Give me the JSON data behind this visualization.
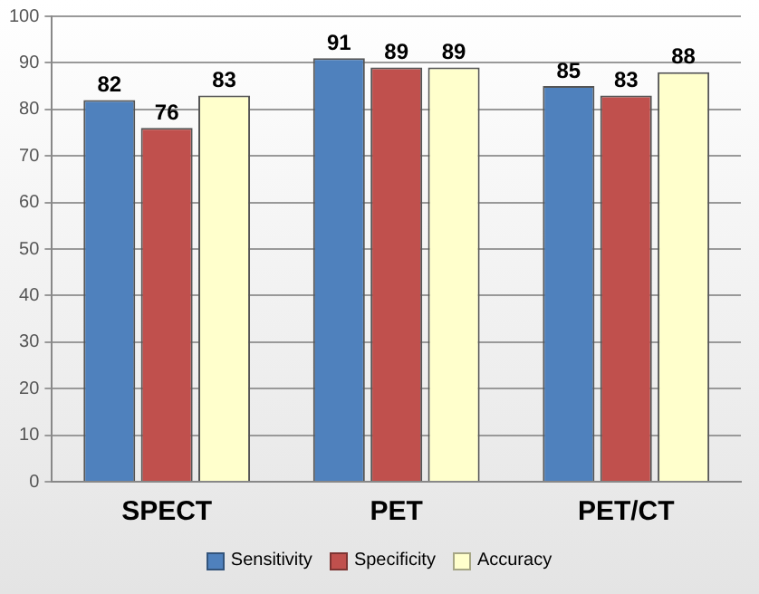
{
  "chart_data": {
    "type": "bar",
    "categories": [
      "SPECT",
      "PET",
      "PET/CT"
    ],
    "series": [
      {
        "name": "Sensitivity",
        "color": "#4f81bd",
        "values": [
          82,
          91,
          85
        ]
      },
      {
        "name": "Specificity",
        "color": "#c0504d",
        "values": [
          76,
          89,
          83
        ]
      },
      {
        "name": "Accuracy",
        "color": "#ffffcc",
        "values": [
          83,
          89,
          88
        ]
      }
    ],
    "ylim": [
      0,
      100
    ],
    "yticks": [
      0,
      10,
      20,
      30,
      40,
      50,
      60,
      70,
      80,
      90,
      100
    ],
    "grid": "y",
    "legend": "bottom",
    "data_labels": true
  }
}
